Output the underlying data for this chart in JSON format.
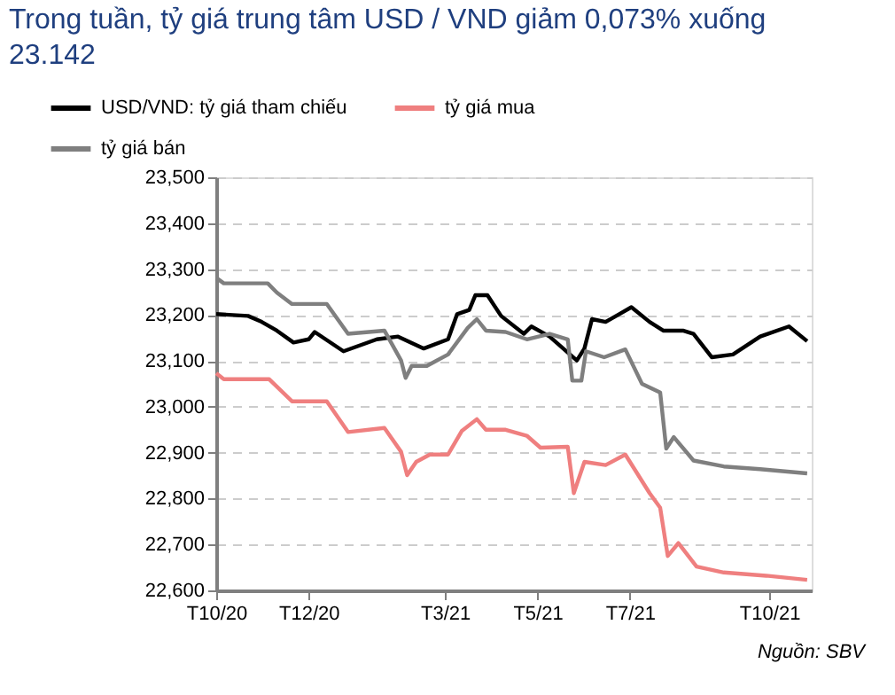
{
  "chart_data": {
    "type": "line",
    "title": [
      "Trong tuần, tỷ giá trung tâm USD / VND giảm 0,073% xuống",
      "23.142"
    ],
    "xlim": [
      "2020-10-01",
      "2021-10-29"
    ],
    "xticks": [
      {
        "value": "2020-10-01",
        "label": "T10/20"
      },
      {
        "value": "2020-12-01",
        "label": "T12/20"
      },
      {
        "value": "2021-03-01",
        "label": "T3/21"
      },
      {
        "value": "2021-05-01",
        "label": "T5/21"
      },
      {
        "value": "2021-07-01",
        "label": "T7/21"
      },
      {
        "value": "2021-10-01",
        "label": "T10/21"
      }
    ],
    "ylim": [
      22600,
      23500
    ],
    "yticks": [
      {
        "value": 22600,
        "label": "22,600"
      },
      {
        "value": 22700,
        "label": "22,700"
      },
      {
        "value": 22800,
        "label": "22,800"
      },
      {
        "value": 22900,
        "label": "22,900"
      },
      {
        "value": 23000,
        "label": "23,000"
      },
      {
        "value": 23100,
        "label": "23,100"
      },
      {
        "value": 23200,
        "label": "23,200"
      },
      {
        "value": 23300,
        "label": "23,300"
      },
      {
        "value": 23400,
        "label": "23,400"
      },
      {
        "value": 23500,
        "label": "23,500"
      }
    ],
    "grid": "y",
    "legend": "top left",
    "line_style": "solid",
    "marker": "none",
    "annotations": [
      "Nguồn: SBV"
    ],
    "series": [
      {
        "name": "USD/VND: tỷ giá tham chiếu",
        "color": "#000000",
        "x": [
          "2020-10-01",
          "2020-10-22",
          "2020-10-31",
          "2020-11-10",
          "2020-11-21",
          "2020-12-01",
          "2020-12-05",
          "2020-12-24",
          "2021-01-15",
          "2021-01-29",
          "2021-02-15",
          "2021-03-03",
          "2021-03-09",
          "2021-03-17",
          "2021-03-21",
          "2021-03-29",
          "2021-04-07",
          "2021-04-22",
          "2021-04-27",
          "2021-05-09",
          "2021-05-17",
          "2021-05-27",
          "2021-06-01",
          "2021-06-06",
          "2021-06-15",
          "2021-06-24",
          "2021-07-02",
          "2021-07-14",
          "2021-07-23",
          "2021-08-05",
          "2021-08-12",
          "2021-08-24",
          "2021-09-07",
          "2021-09-25",
          "2021-10-14",
          "2021-10-26"
        ],
        "values": [
          23202,
          23198,
          23185,
          23166,
          23140,
          23147,
          23163,
          23121,
          23147,
          23153,
          23127,
          23147,
          23202,
          23211,
          23243,
          23243,
          23198,
          23159,
          23175,
          23153,
          23130,
          23101,
          23127,
          23191,
          23185,
          23202,
          23217,
          23185,
          23166,
          23166,
          23159,
          23108,
          23114,
          23153,
          23175,
          23143
        ]
      },
      {
        "name": "tỷ giá mua",
        "color": "#ef7f7f",
        "x": [
          "2020-10-01",
          "2020-10-06",
          "2020-11-05",
          "2020-11-20",
          "2020-12-13",
          "2020-12-27",
          "2021-01-20",
          "2021-01-31",
          "2021-02-04",
          "2021-02-10",
          "2021-02-19",
          "2021-03-03",
          "2021-03-12",
          "2021-03-22",
          "2021-03-28",
          "2021-04-10",
          "2021-04-24",
          "2021-05-03",
          "2021-05-21",
          "2021-05-25",
          "2021-06-01",
          "2021-06-15",
          "2021-06-28",
          "2021-07-14",
          "2021-07-21",
          "2021-07-26",
          "2021-08-02",
          "2021-08-14",
          "2021-09-01",
          "2021-09-29",
          "2021-10-26"
        ],
        "values": [
          23073,
          23060,
          23060,
          23012,
          23012,
          22945,
          22954,
          22902,
          22851,
          22880,
          22896,
          22896,
          22947,
          22973,
          22950,
          22950,
          22937,
          22911,
          22913,
          22812,
          22880,
          22873,
          22896,
          22812,
          22780,
          22675,
          22703,
          22652,
          22639,
          22632,
          22623
        ]
      },
      {
        "name": "tỷ giá bán",
        "color": "#7f7f7f",
        "x": [
          "2020-10-01",
          "2020-10-06",
          "2020-11-04",
          "2020-11-10",
          "2020-11-20",
          "2020-12-13",
          "2020-12-27",
          "2021-01-20",
          "2021-01-31",
          "2021-02-03",
          "2021-02-07",
          "2021-02-17",
          "2021-03-03",
          "2021-03-16",
          "2021-03-22",
          "2021-03-28",
          "2021-04-10",
          "2021-04-24",
          "2021-05-09",
          "2021-05-21",
          "2021-05-24",
          "2021-05-30",
          "2021-06-02",
          "2021-06-14",
          "2021-06-28",
          "2021-07-09",
          "2021-07-21",
          "2021-07-25",
          "2021-07-30",
          "2021-08-12",
          "2021-09-01",
          "2021-09-25",
          "2021-10-26"
        ],
        "values": [
          23281,
          23269,
          23269,
          23249,
          23224,
          23224,
          23159,
          23166,
          23101,
          23063,
          23089,
          23089,
          23114,
          23172,
          23191,
          23166,
          23163,
          23147,
          23159,
          23147,
          23057,
          23057,
          23121,
          23108,
          23125,
          23050,
          23031,
          22909,
          22934,
          22883,
          22870,
          22864,
          22855
        ]
      }
    ]
  }
}
